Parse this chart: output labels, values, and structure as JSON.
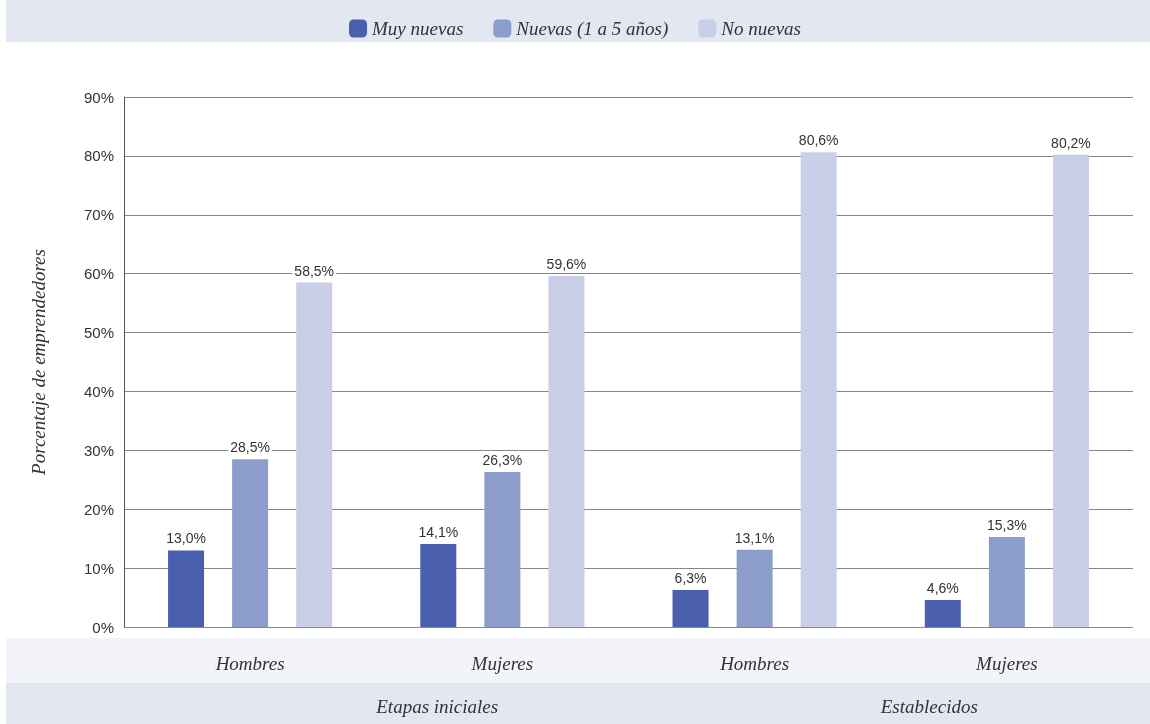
{
  "chart_data": {
    "type": "bar",
    "ylabel": "Porcentaje de emprendedores",
    "categories": [
      "Hombres",
      "Mujeres",
      "Hombres",
      "Mujeres"
    ],
    "series": [
      {
        "name": "Muy nuevas",
        "color": "#4a5fad",
        "values": [
          13.0,
          14.1,
          6.3,
          4.6
        ],
        "value_labels": [
          "13,0%",
          "14,1%",
          "6,3%",
          "4,6%"
        ]
      },
      {
        "name": "Nuevas (1 a 5 años)",
        "color": "#8c9dcb",
        "values": [
          28.5,
          26.3,
          13.1,
          15.3
        ],
        "value_labels": [
          "28,5%",
          "26,3%",
          "13,1%",
          "15,3%"
        ]
      },
      {
        "name": "No nuevas",
        "color": "#c9cfe7",
        "values": [
          58.5,
          59.6,
          80.6,
          80.2
        ],
        "value_labels": [
          "58,5%",
          "59,6%",
          "80,6%",
          "80,2%"
        ]
      }
    ],
    "ylim": [
      0,
      90
    ],
    "yticks": [
      {
        "value": 0,
        "label": "0%"
      },
      {
        "value": 10,
        "label": "10%"
      },
      {
        "value": 20,
        "label": "20%"
      },
      {
        "value": 30,
        "label": "30%"
      },
      {
        "value": 40,
        "label": "40%"
      },
      {
        "value": 50,
        "label": "50%"
      },
      {
        "value": 60,
        "label": "60%"
      },
      {
        "value": 70,
        "label": "70%"
      },
      {
        "value": 80,
        "label": "80%"
      },
      {
        "value": 90,
        "label": "90%"
      }
    ],
    "grid": "y",
    "legend": "top",
    "annotations": [
      "Etapas iniciales",
      "Establecidos"
    ]
  }
}
